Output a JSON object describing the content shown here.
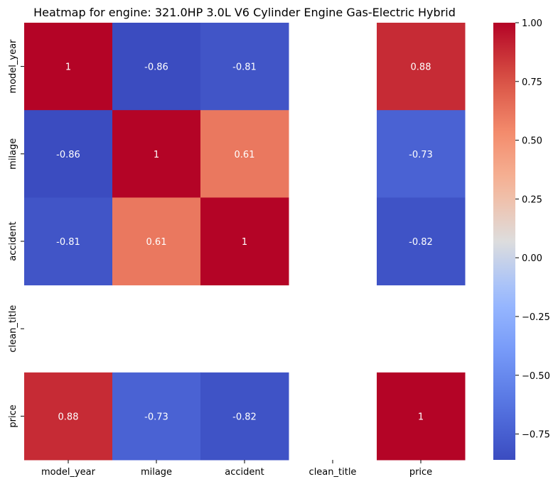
{
  "chart_data": {
    "type": "heatmap",
    "title": "Heatmap for engine: 321.0HP 3.0L V6 Cylinder Engine Gas-Electric Hybrid",
    "x_labels": [
      "model_year",
      "milage",
      "accident",
      "clean_title",
      "price"
    ],
    "y_labels": [
      "model_year",
      "milage",
      "accident",
      "clean_title",
      "price"
    ],
    "values": [
      [
        1,
        -0.86,
        -0.81,
        null,
        0.88
      ],
      [
        -0.86,
        1,
        0.61,
        null,
        -0.73
      ],
      [
        -0.81,
        0.61,
        1,
        null,
        -0.82
      ],
      [
        null,
        null,
        null,
        null,
        null
      ],
      [
        0.88,
        -0.73,
        -0.82,
        null,
        1
      ]
    ],
    "annotations": [
      [
        "1",
        "-0.86",
        "-0.81",
        "",
        "0.88"
      ],
      [
        "-0.86",
        "1",
        "0.61",
        "",
        "-0.73"
      ],
      [
        "-0.81",
        "0.61",
        "1",
        "",
        "-0.82"
      ],
      [
        "",
        "",
        "",
        "",
        ""
      ],
      [
        "0.88",
        "-0.73",
        "-0.82",
        "",
        "1"
      ]
    ],
    "colormap": "coolwarm",
    "vmin": -0.86,
    "vmax": 1.0,
    "colorbar_ticks": [
      1.0,
      0.75,
      0.5,
      0.25,
      0.0,
      -0.25,
      -0.5,
      -0.75
    ],
    "colorbar_tick_labels": [
      "1.00",
      "0.75",
      "0.50",
      "0.25",
      "0.00",
      "−0.25",
      "−0.50",
      "−0.75"
    ],
    "colorbar": "right"
  }
}
